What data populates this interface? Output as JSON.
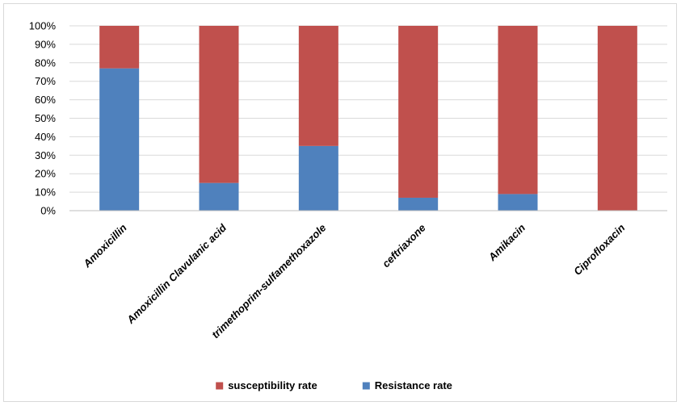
{
  "chart_data": {
    "type": "bar",
    "stacked": true,
    "percent_axis": true,
    "categories": [
      "Amoxicillin",
      "Amoxicillin Clavulanic acid",
      "trimethoprim-sulfamethoxazole",
      "ceftriaxone",
      "Amikacin",
      "Ciprofloxacin"
    ],
    "series": [
      {
        "name": "Resistance rate",
        "color": "#4f81bd",
        "values": [
          77,
          15,
          35,
          7,
          9,
          0
        ]
      },
      {
        "name": "susceptibility rate",
        "color": "#c0504d",
        "values": [
          23,
          85,
          65,
          93,
          91,
          100
        ]
      }
    ],
    "ylim": [
      0,
      100
    ],
    "yticks": [
      "0%",
      "10%",
      "20%",
      "30%",
      "40%",
      "50%",
      "60%",
      "70%",
      "80%",
      "90%",
      "100%"
    ],
    "grid": true,
    "legend_position": "bottom",
    "legend_order": [
      "susceptibility rate",
      "Resistance rate"
    ],
    "gridline_color": "#d9d9d9"
  }
}
